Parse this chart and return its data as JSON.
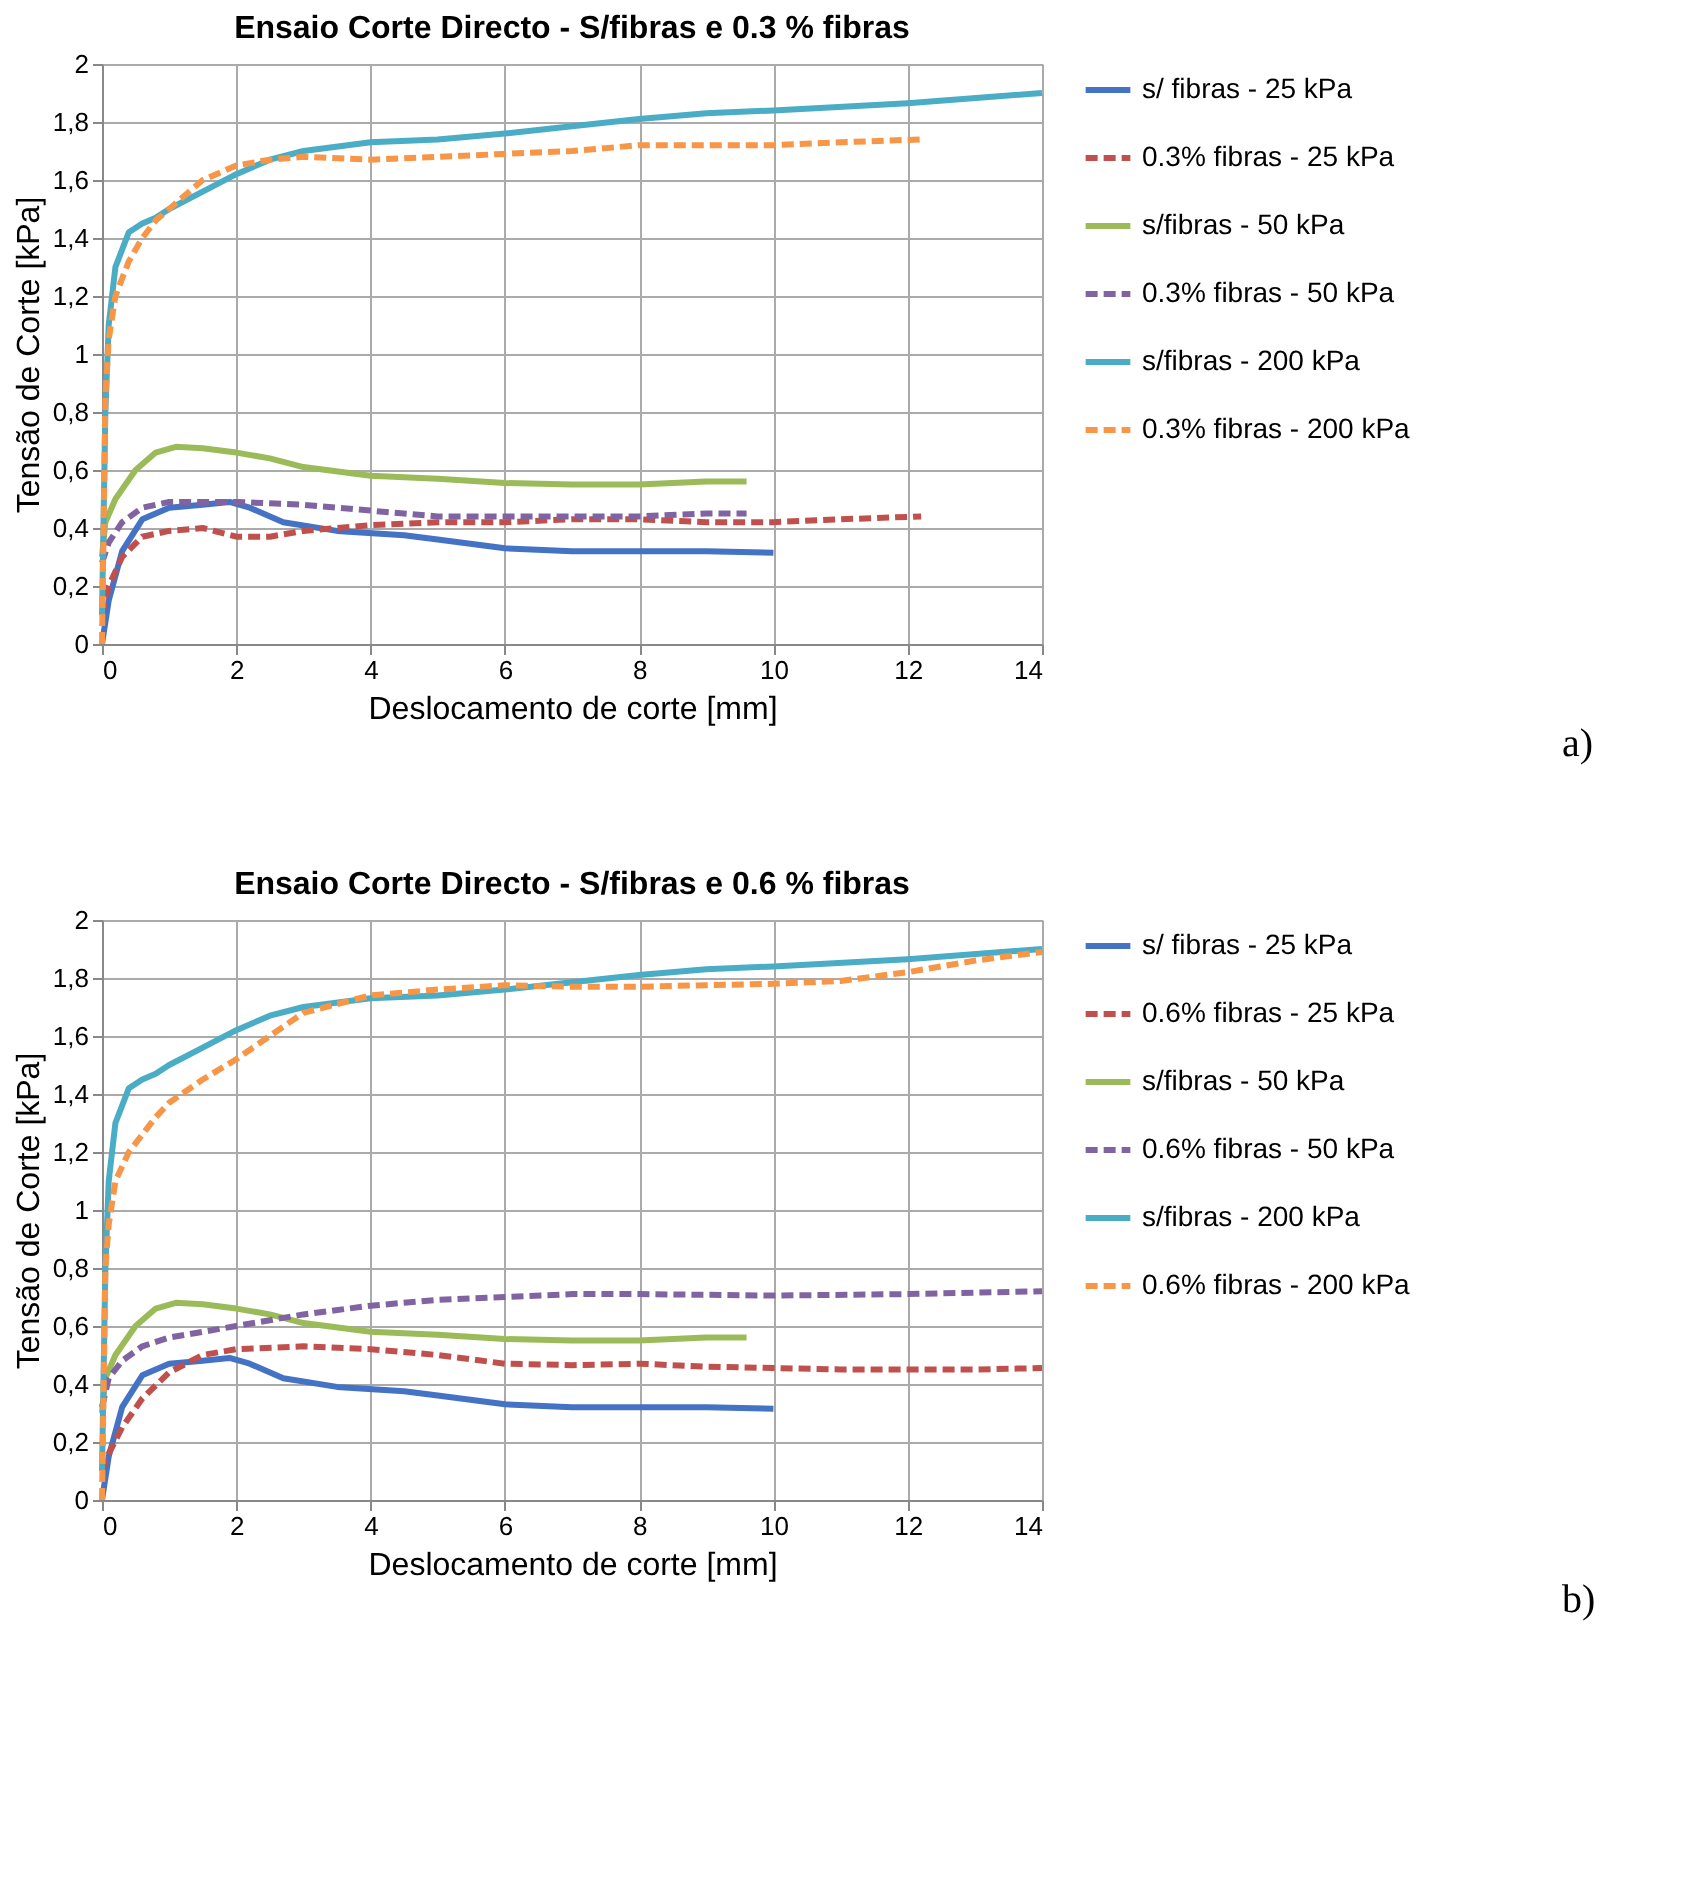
{
  "chart_data": [
    {
      "type": "line",
      "title": "Ensaio Corte Directo - S/fibras e 0.3 % fibras",
      "xlabel": "Deslocamento de corte [mm]",
      "ylabel": "Tensão de Corte [kPa]",
      "xlim": [
        0,
        14
      ],
      "xticks": [
        0,
        2,
        4,
        6,
        8,
        10,
        12,
        14
      ],
      "ylim": [
        0,
        2
      ],
      "yticks": [
        0,
        {
          "value": 0.2,
          "label": "0,2"
        },
        {
          "value": 0.4,
          "label": "0,4"
        },
        {
          "value": 0.6,
          "label": "0,6"
        },
        {
          "value": 0.8,
          "label": "0,8"
        },
        1,
        {
          "value": 1.2,
          "label": "1,2"
        },
        {
          "value": 1.4,
          "label": "1,4"
        },
        {
          "value": 1.6,
          "label": "1,6"
        },
        {
          "value": 1.8,
          "label": "1,8"
        },
        2
      ],
      "grid": true,
      "legend": "right",
      "annotations": [
        "a)"
      ],
      "series": [
        {
          "name": "s/ fibras - 25 kPa",
          "color": "#4472c4",
          "line_style": "solid",
          "x": [
            0,
            0.1,
            0.3,
            0.6,
            1,
            1.5,
            1.9,
            2.2,
            2.7,
            3.5,
            4.5,
            5,
            6,
            7,
            8,
            9,
            10
          ],
          "values": [
            0,
            0.15,
            0.32,
            0.43,
            0.47,
            0.48,
            0.49,
            0.47,
            0.42,
            0.39,
            0.375,
            0.36,
            0.33,
            0.32,
            0.32,
            0.32,
            0.315
          ]
        },
        {
          "name": "0.3% fibras - 25 kPa",
          "color": "#c0504d",
          "line_style": "dashed",
          "x": [
            0,
            0.1,
            0.3,
            0.6,
            1,
            1.5,
            2,
            2.5,
            3,
            4,
            5,
            6,
            7,
            8,
            9,
            10,
            11,
            12.2
          ],
          "values": [
            0.1,
            0.2,
            0.3,
            0.37,
            0.39,
            0.4,
            0.37,
            0.37,
            0.39,
            0.41,
            0.42,
            0.42,
            0.43,
            0.43,
            0.42,
            0.42,
            0.43,
            0.44
          ]
        },
        {
          "name": "s/fibras - 50 kPa",
          "color": "#9bbb59",
          "line_style": "solid",
          "x": [
            0,
            0.05,
            0.2,
            0.5,
            0.8,
            1.1,
            1.5,
            2,
            2.5,
            3,
            4,
            5,
            6,
            7,
            8,
            9,
            9.6
          ],
          "values": [
            0.3,
            0.42,
            0.5,
            0.6,
            0.66,
            0.68,
            0.675,
            0.66,
            0.64,
            0.61,
            0.58,
            0.57,
            0.555,
            0.55,
            0.55,
            0.56,
            0.56
          ]
        },
        {
          "name": "0.3% fibras - 50 kPa",
          "color": "#8064a2",
          "line_style": "dashed",
          "x": [
            0,
            0.1,
            0.3,
            0.6,
            1,
            1.5,
            2,
            3,
            4,
            5,
            6,
            7,
            8,
            9,
            9.6
          ],
          "values": [
            0.28,
            0.35,
            0.42,
            0.47,
            0.49,
            0.49,
            0.49,
            0.48,
            0.46,
            0.44,
            0.44,
            0.44,
            0.44,
            0.45,
            0.45
          ]
        },
        {
          "name": "s/fibras - 200 kPa",
          "color": "#4bacc6",
          "line_style": "solid",
          "x": [
            0,
            0.05,
            0.1,
            0.2,
            0.4,
            0.6,
            0.8,
            1,
            1.5,
            2,
            2.5,
            3,
            4,
            5,
            6,
            7,
            8,
            9,
            10,
            12,
            14
          ],
          "values": [
            0.1,
            0.8,
            1.1,
            1.3,
            1.42,
            1.45,
            1.47,
            1.5,
            1.56,
            1.62,
            1.67,
            1.7,
            1.73,
            1.74,
            1.76,
            1.785,
            1.81,
            1.83,
            1.84,
            1.865,
            1.9
          ]
        },
        {
          "name": "0.3% fibras - 200 kPa",
          "color": "#f79646",
          "line_style": "dashed",
          "x": [
            0,
            0.05,
            0.1,
            0.2,
            0.4,
            0.6,
            0.8,
            1,
            1.5,
            2,
            2.5,
            3,
            4,
            5,
            6,
            7,
            8,
            9,
            10,
            11,
            12.2
          ],
          "values": [
            0,
            0.85,
            1.05,
            1.2,
            1.32,
            1.4,
            1.46,
            1.5,
            1.6,
            1.65,
            1.67,
            1.68,
            1.67,
            1.68,
            1.69,
            1.7,
            1.72,
            1.72,
            1.72,
            1.73,
            1.74
          ]
        }
      ]
    },
    {
      "type": "line",
      "title": "Ensaio Corte Directo - S/fibras e 0.6 % fibras",
      "xlabel": "Deslocamento de corte [mm]",
      "ylabel": "Tensão de Corte [kPa]",
      "xlim": [
        0,
        14
      ],
      "xticks": [
        0,
        2,
        4,
        6,
        8,
        10,
        12,
        14
      ],
      "ylim": [
        0,
        2
      ],
      "yticks": [
        0,
        {
          "value": 0.2,
          "label": "0,2"
        },
        {
          "value": 0.4,
          "label": "0,4"
        },
        {
          "value": 0.6,
          "label": "0,6"
        },
        {
          "value": 0.8,
          "label": "0,8"
        },
        1,
        {
          "value": 1.2,
          "label": "1,2"
        },
        {
          "value": 1.4,
          "label": "1,4"
        },
        {
          "value": 1.6,
          "label": "1,6"
        },
        {
          "value": 1.8,
          "label": "1,8"
        },
        2
      ],
      "grid": true,
      "legend": "right",
      "annotations": [
        "b)"
      ],
      "series": [
        {
          "name": "s/ fibras - 25 kPa",
          "color": "#4472c4",
          "line_style": "solid",
          "x": [
            0,
            0.1,
            0.3,
            0.6,
            1,
            1.5,
            1.9,
            2.2,
            2.7,
            3.5,
            4.5,
            5,
            6,
            7,
            8,
            9,
            10
          ],
          "values": [
            0,
            0.15,
            0.32,
            0.43,
            0.47,
            0.48,
            0.49,
            0.47,
            0.42,
            0.39,
            0.375,
            0.36,
            0.33,
            0.32,
            0.32,
            0.32,
            0.315
          ]
        },
        {
          "name": "0.6% fibras - 25 kPa",
          "color": "#c0504d",
          "line_style": "dashed",
          "x": [
            0,
            0.1,
            0.3,
            0.6,
            1,
            1.5,
            2,
            3,
            4,
            5,
            6,
            7,
            8,
            9,
            10,
            11,
            12,
            13,
            14
          ],
          "values": [
            0.1,
            0.16,
            0.25,
            0.35,
            0.44,
            0.5,
            0.52,
            0.53,
            0.52,
            0.5,
            0.47,
            0.465,
            0.47,
            0.46,
            0.455,
            0.45,
            0.45,
            0.45,
            0.455
          ]
        },
        {
          "name": "s/fibras - 50 kPa",
          "color": "#9bbb59",
          "line_style": "solid",
          "x": [
            0,
            0.05,
            0.2,
            0.5,
            0.8,
            1.1,
            1.5,
            2,
            2.5,
            3,
            4,
            5,
            6,
            7,
            8,
            9,
            9.6
          ],
          "values": [
            0.3,
            0.42,
            0.5,
            0.6,
            0.66,
            0.68,
            0.675,
            0.66,
            0.64,
            0.61,
            0.58,
            0.57,
            0.555,
            0.55,
            0.55,
            0.56,
            0.56
          ]
        },
        {
          "name": "0.6% fibras - 50 kPa",
          "color": "#8064a2",
          "line_style": "dashed",
          "x": [
            0,
            0.1,
            0.3,
            0.6,
            1,
            1.5,
            2,
            3,
            4,
            5,
            6,
            7,
            8,
            10,
            12,
            14
          ],
          "values": [
            0.32,
            0.42,
            0.48,
            0.53,
            0.56,
            0.58,
            0.6,
            0.64,
            0.67,
            0.69,
            0.7,
            0.71,
            0.71,
            0.705,
            0.71,
            0.72
          ]
        },
        {
          "name": "s/fibras - 200 kPa",
          "color": "#4bacc6",
          "line_style": "solid",
          "x": [
            0,
            0.05,
            0.1,
            0.2,
            0.4,
            0.6,
            0.8,
            1,
            1.5,
            2,
            2.5,
            3,
            4,
            5,
            6,
            7,
            8,
            9,
            10,
            12,
            14
          ],
          "values": [
            0.1,
            0.8,
            1.1,
            1.3,
            1.42,
            1.45,
            1.47,
            1.5,
            1.56,
            1.62,
            1.67,
            1.7,
            1.73,
            1.74,
            1.76,
            1.785,
            1.81,
            1.83,
            1.84,
            1.865,
            1.9
          ]
        },
        {
          "name": "0.6% fibras - 200 kPa",
          "color": "#f79646",
          "line_style": "dashed",
          "x": [
            0,
            0.05,
            0.1,
            0.2,
            0.4,
            0.6,
            0.8,
            1,
            1.5,
            2,
            2.5,
            3,
            4,
            5,
            6,
            7,
            8,
            9,
            10,
            11,
            12,
            13,
            14
          ],
          "values": [
            0,
            0.8,
            0.95,
            1.1,
            1.2,
            1.26,
            1.32,
            1.37,
            1.45,
            1.52,
            1.6,
            1.68,
            1.74,
            1.76,
            1.775,
            1.77,
            1.77,
            1.775,
            1.78,
            1.79,
            1.82,
            1.86,
            1.89
          ]
        }
      ]
    }
  ]
}
